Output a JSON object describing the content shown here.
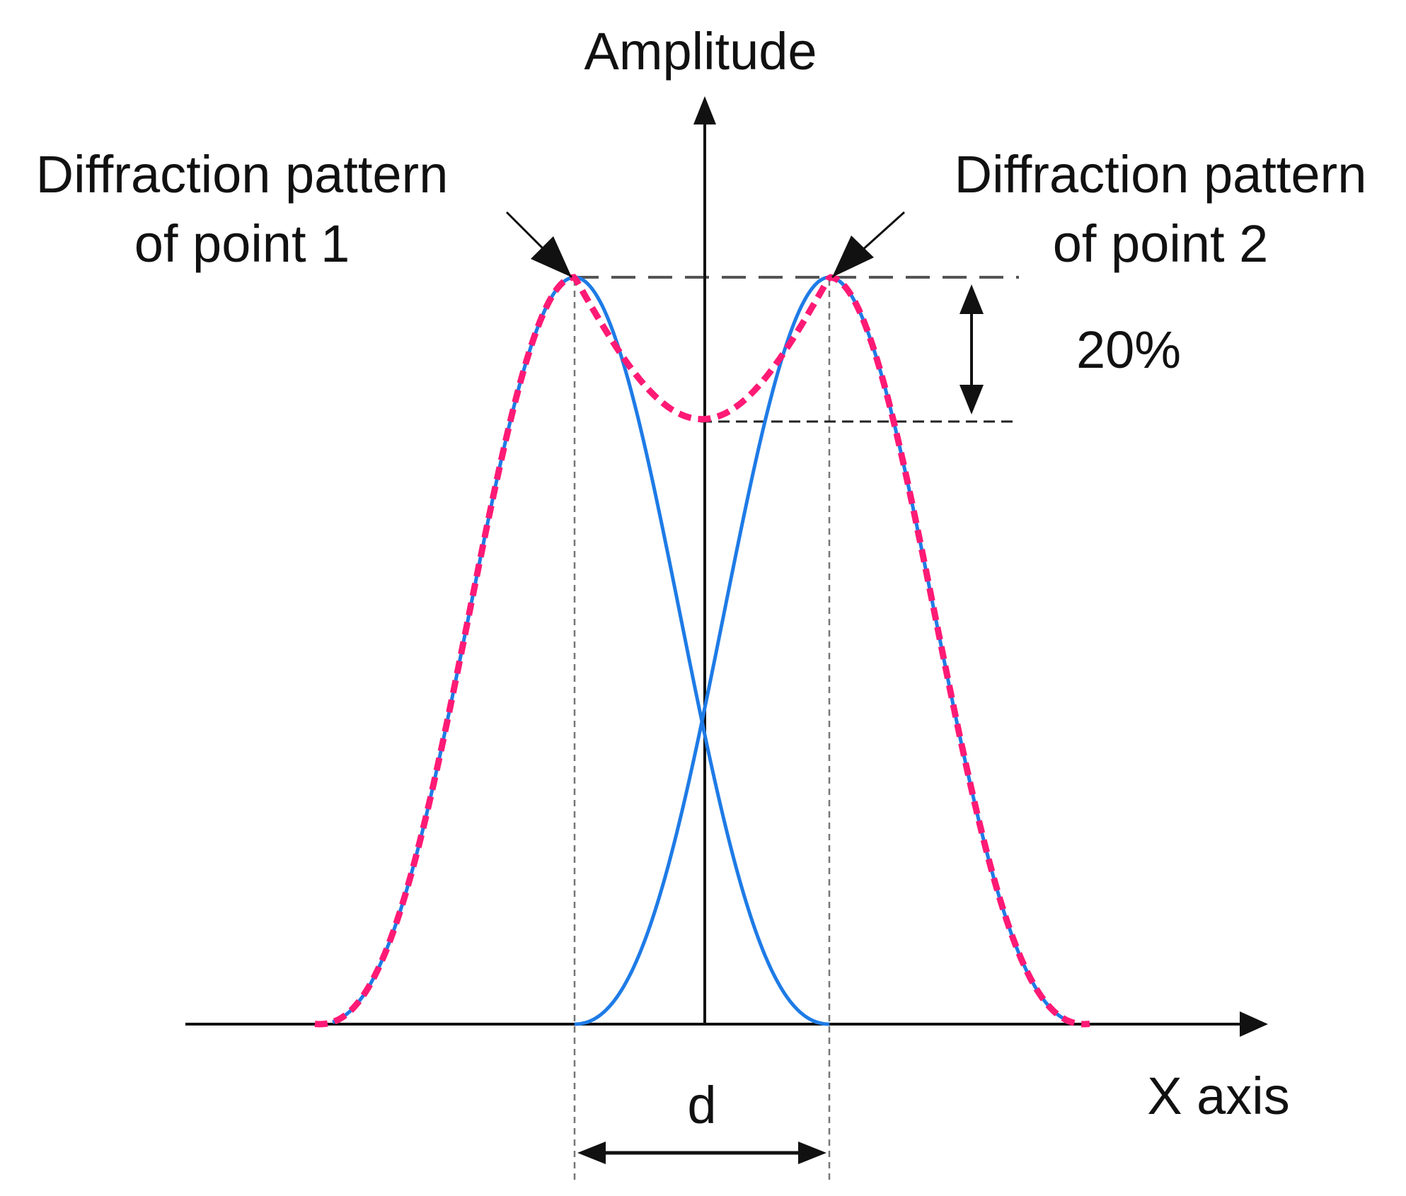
{
  "labels": {
    "y_axis": "Amplitude",
    "x_axis": "X axis",
    "point1_line1": "Diffraction pattern",
    "point1_line2": "of point 1",
    "point2_line1": "Diffraction pattern",
    "point2_line2": "of point 2",
    "dip": "20%",
    "separation": "d"
  },
  "colors": {
    "individual_pattern": "#1e7be6",
    "combined_pattern": "#ff1a75",
    "axes": "#111111",
    "guides": "#555555"
  }
}
